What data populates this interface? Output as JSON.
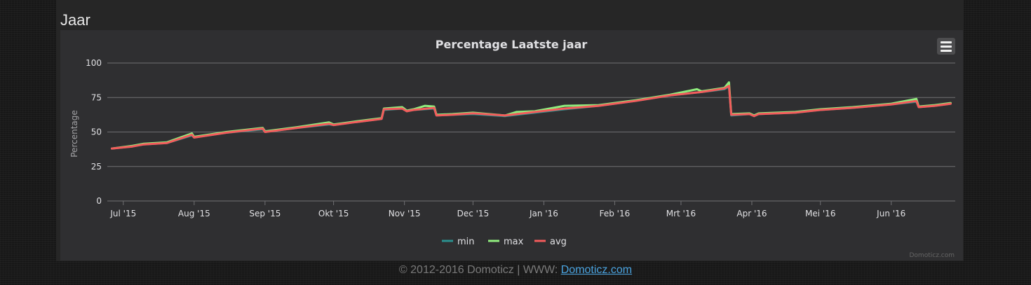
{
  "section": {
    "title": "Jaar"
  },
  "footer": {
    "copyright": "© 2012-2016 Domoticz | WWW: ",
    "link_text": "Domoticz.com"
  },
  "chart_data": {
    "type": "line",
    "title": "Percentage Laatste jaar",
    "ylabel": "Percentage",
    "xlabel": "",
    "credits": "Domoticz.com",
    "ylim": [
      0,
      100
    ],
    "yticks": [
      0,
      25,
      50,
      75,
      100
    ],
    "xlim": [
      "2015-06-24",
      "2016-06-29"
    ],
    "xticks": [
      {
        "date": "2015-07-01",
        "label": "Jul '15"
      },
      {
        "date": "2015-08-01",
        "label": "Aug '15"
      },
      {
        "date": "2015-09-01",
        "label": "Sep '15"
      },
      {
        "date": "2015-10-01",
        "label": "Okt '15"
      },
      {
        "date": "2015-11-01",
        "label": "Nov '15"
      },
      {
        "date": "2015-12-01",
        "label": "Dec '15"
      },
      {
        "date": "2016-01-01",
        "label": "Jan '16"
      },
      {
        "date": "2016-02-01",
        "label": "Feb '16"
      },
      {
        "date": "2016-03-01",
        "label": "Mrt '16"
      },
      {
        "date": "2016-04-01",
        "label": "Apr '16"
      },
      {
        "date": "2016-05-01",
        "label": "Mei '16"
      },
      {
        "date": "2016-06-01",
        "label": "Jun '16"
      }
    ],
    "grid": true,
    "legend_position": "bottom-center",
    "series": [
      {
        "name": "min",
        "color": "#2b908f",
        "x": [
          "2015-06-26",
          "2015-07-05",
          "2015-07-10",
          "2015-07-20",
          "2015-07-31",
          "2015-08-01",
          "2015-08-15",
          "2015-08-31",
          "2015-09-01",
          "2015-09-15",
          "2015-09-29",
          "2015-10-01",
          "2015-10-10",
          "2015-10-22",
          "2015-10-23",
          "2015-10-31",
          "2015-11-02",
          "2015-11-05",
          "2015-11-14",
          "2015-11-15",
          "2015-11-22",
          "2015-12-01",
          "2015-12-15",
          "2015-12-28",
          "2016-01-10",
          "2016-01-25",
          "2016-02-10",
          "2016-02-25",
          "2016-03-10",
          "2016-03-20",
          "2016-03-22",
          "2016-03-23",
          "2016-03-31",
          "2016-04-02",
          "2016-04-04",
          "2016-04-20",
          "2016-05-01",
          "2016-05-15",
          "2016-06-01",
          "2016-06-12",
          "2016-06-13",
          "2016-06-20",
          "2016-06-27"
        ],
        "y": [
          38,
          39.5,
          41,
          42,
          47.5,
          46,
          49.5,
          52,
          50,
          53,
          55.5,
          55,
          57,
          59.5,
          66,
          67,
          65,
          66,
          67,
          62,
          62.5,
          63,
          61.5,
          64,
          66.5,
          69,
          72.5,
          76.5,
          79,
          81,
          83,
          62,
          63,
          61.5,
          63,
          64,
          66,
          67.5,
          70,
          72,
          68,
          69,
          70.5
        ]
      },
      {
        "name": "max",
        "color": "#90ee7e",
        "x": [
          "2015-06-26",
          "2015-07-05",
          "2015-07-10",
          "2015-07-20",
          "2015-07-31",
          "2015-08-01",
          "2015-08-15",
          "2015-08-31",
          "2015-09-01",
          "2015-09-15",
          "2015-09-29",
          "2015-10-01",
          "2015-10-10",
          "2015-10-22",
          "2015-10-23",
          "2015-10-31",
          "2015-11-02",
          "2015-11-05",
          "2015-11-10",
          "2015-11-14",
          "2015-11-15",
          "2015-11-22",
          "2015-12-01",
          "2015-12-15",
          "2015-12-20",
          "2015-12-28",
          "2016-01-10",
          "2016-01-25",
          "2016-02-10",
          "2016-02-25",
          "2016-03-08",
          "2016-03-10",
          "2016-03-20",
          "2016-03-22",
          "2016-03-23",
          "2016-03-31",
          "2016-04-02",
          "2016-04-04",
          "2016-04-20",
          "2016-05-01",
          "2016-05-15",
          "2016-06-01",
          "2016-06-12",
          "2016-06-13",
          "2016-06-20",
          "2016-06-27"
        ],
        "y": [
          38,
          40,
          41.5,
          42.5,
          49,
          46.5,
          50,
          53,
          50.5,
          53.5,
          57,
          55.5,
          57.5,
          60,
          67,
          68,
          65.5,
          66.5,
          69,
          68.5,
          62.5,
          63,
          64,
          62,
          64.5,
          65,
          69,
          69.5,
          73,
          77,
          81,
          79.5,
          82,
          86,
          63,
          63.5,
          62,
          63.5,
          64.5,
          66.5,
          68,
          70.5,
          74,
          68.5,
          69.5,
          71
        ]
      },
      {
        "name": "avg",
        "color": "#f45b5b",
        "x": [
          "2015-06-26",
          "2015-07-05",
          "2015-07-10",
          "2015-07-20",
          "2015-07-31",
          "2015-08-01",
          "2015-08-15",
          "2015-08-31",
          "2015-09-01",
          "2015-09-15",
          "2015-09-29",
          "2015-10-01",
          "2015-10-10",
          "2015-10-22",
          "2015-10-23",
          "2015-10-31",
          "2015-11-02",
          "2015-11-05",
          "2015-11-14",
          "2015-11-15",
          "2015-11-22",
          "2015-12-01",
          "2015-12-15",
          "2015-12-28",
          "2016-01-10",
          "2016-01-25",
          "2016-02-10",
          "2016-02-25",
          "2016-03-10",
          "2016-03-20",
          "2016-03-22",
          "2016-03-23",
          "2016-03-31",
          "2016-04-02",
          "2016-04-04",
          "2016-04-20",
          "2016-05-01",
          "2016-05-15",
          "2016-06-01",
          "2016-06-12",
          "2016-06-13",
          "2016-06-20",
          "2016-06-27"
        ],
        "y": [
          38,
          39.5,
          41,
          42,
          48,
          46,
          49.5,
          52.5,
          50,
          53,
          56,
          55,
          57,
          59.5,
          66.5,
          67,
          65,
          66,
          67.5,
          62,
          62.5,
          63.5,
          62,
          64.5,
          67,
          69,
          72.5,
          76.5,
          79,
          81.5,
          83.5,
          62.5,
          63,
          61.5,
          63,
          64,
          66,
          67.5,
          70,
          72.5,
          68,
          69,
          70.5
        ]
      }
    ]
  }
}
